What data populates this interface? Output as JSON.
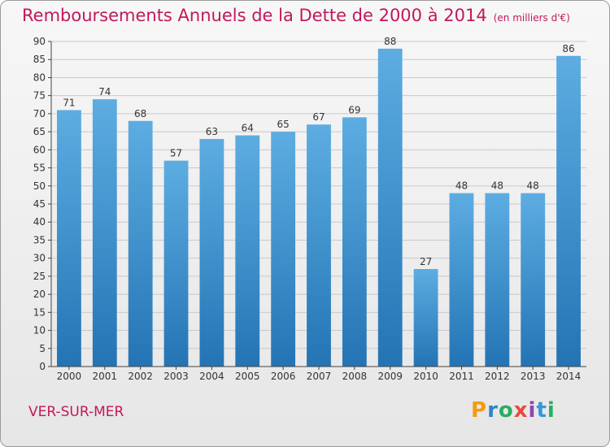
{
  "header": {
    "title": "Remboursements Annuels de la Dette de 2000 à 2014",
    "unit": "(en milliers d'€)"
  },
  "footer": {
    "commune": "VER-SUR-MER",
    "logo": "Proxiti"
  },
  "colors": {
    "title": "#c2185b",
    "bar_light": "#5dade2",
    "bar_dark": "#2474b5",
    "grid": "#c9c9c9"
  },
  "chart_data": {
    "type": "bar",
    "title": "Remboursements Annuels de la Dette de 2000 à 2014",
    "subtitle": "(en milliers d'€)",
    "xlabel": "",
    "ylabel": "",
    "ylim": [
      0,
      90
    ],
    "ytick_step": 5,
    "grid": true,
    "categories": [
      "2000",
      "2001",
      "2002",
      "2003",
      "2004",
      "2005",
      "2006",
      "2007",
      "2008",
      "2009",
      "2010",
      "2011",
      "2012",
      "2013",
      "2014"
    ],
    "values": [
      71,
      74,
      68,
      57,
      63,
      64,
      65,
      67,
      69,
      88,
      27,
      48,
      48,
      48,
      86
    ]
  }
}
